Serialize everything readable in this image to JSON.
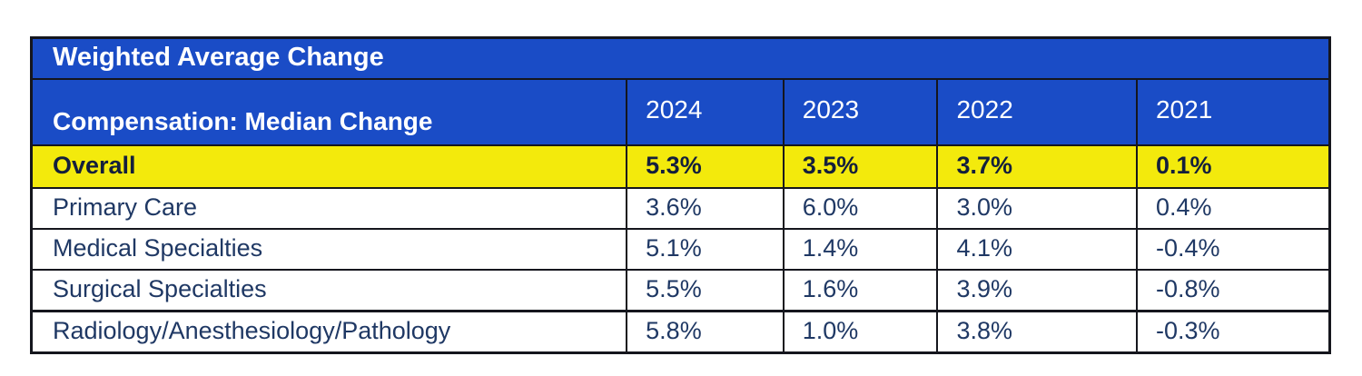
{
  "table": {
    "title": "Weighted Average Change",
    "subtitle": "Compensation: Median Change",
    "years": [
      "2024",
      "2023",
      "2022",
      "2021"
    ],
    "rows": [
      {
        "label": "Overall",
        "values": [
          "5.3%",
          "3.5%",
          "3.7%",
          "0.1%"
        ],
        "highlight": true
      },
      {
        "label": "Primary Care",
        "values": [
          "3.6%",
          "6.0%",
          "3.0%",
          "0.4%"
        ],
        "highlight": false
      },
      {
        "label": "Medical Specialties",
        "values": [
          "5.1%",
          "1.4%",
          "4.1%",
          "-0.4%"
        ],
        "highlight": false
      },
      {
        "label": "Surgical Specialties",
        "values": [
          "5.5%",
          "1.6%",
          "3.9%",
          "-0.8%"
        ],
        "highlight": false
      },
      {
        "label": "Radiology/Anesthesiology/Pathology",
        "values": [
          "5.8%",
          "1.0%",
          "3.8%",
          "-0.3%"
        ],
        "highlight": false
      }
    ],
    "colors": {
      "header_bg": "#1a4cc6",
      "header_text": "#ffffff",
      "highlight_bg": "#f3ea0c",
      "body_text": "#1f3864",
      "border": "#15161d"
    }
  },
  "chart_data": {
    "type": "table",
    "title": "Weighted Average Change",
    "subtitle": "Compensation: Median Change",
    "columns": [
      "2024",
      "2023",
      "2022",
      "2021"
    ],
    "series": [
      {
        "name": "Overall",
        "values": [
          5.3,
          3.5,
          3.7,
          0.1
        ]
      },
      {
        "name": "Primary Care",
        "values": [
          3.6,
          6.0,
          3.0,
          0.4
        ]
      },
      {
        "name": "Medical Specialties",
        "values": [
          5.1,
          1.4,
          4.1,
          -0.4
        ]
      },
      {
        "name": "Surgical Specialties",
        "values": [
          5.5,
          1.6,
          3.9,
          -0.8
        ]
      },
      {
        "name": "Radiology/Anesthesiology/Pathology",
        "values": [
          5.8,
          1.0,
          3.8,
          -0.3
        ]
      }
    ],
    "units": "percent"
  }
}
